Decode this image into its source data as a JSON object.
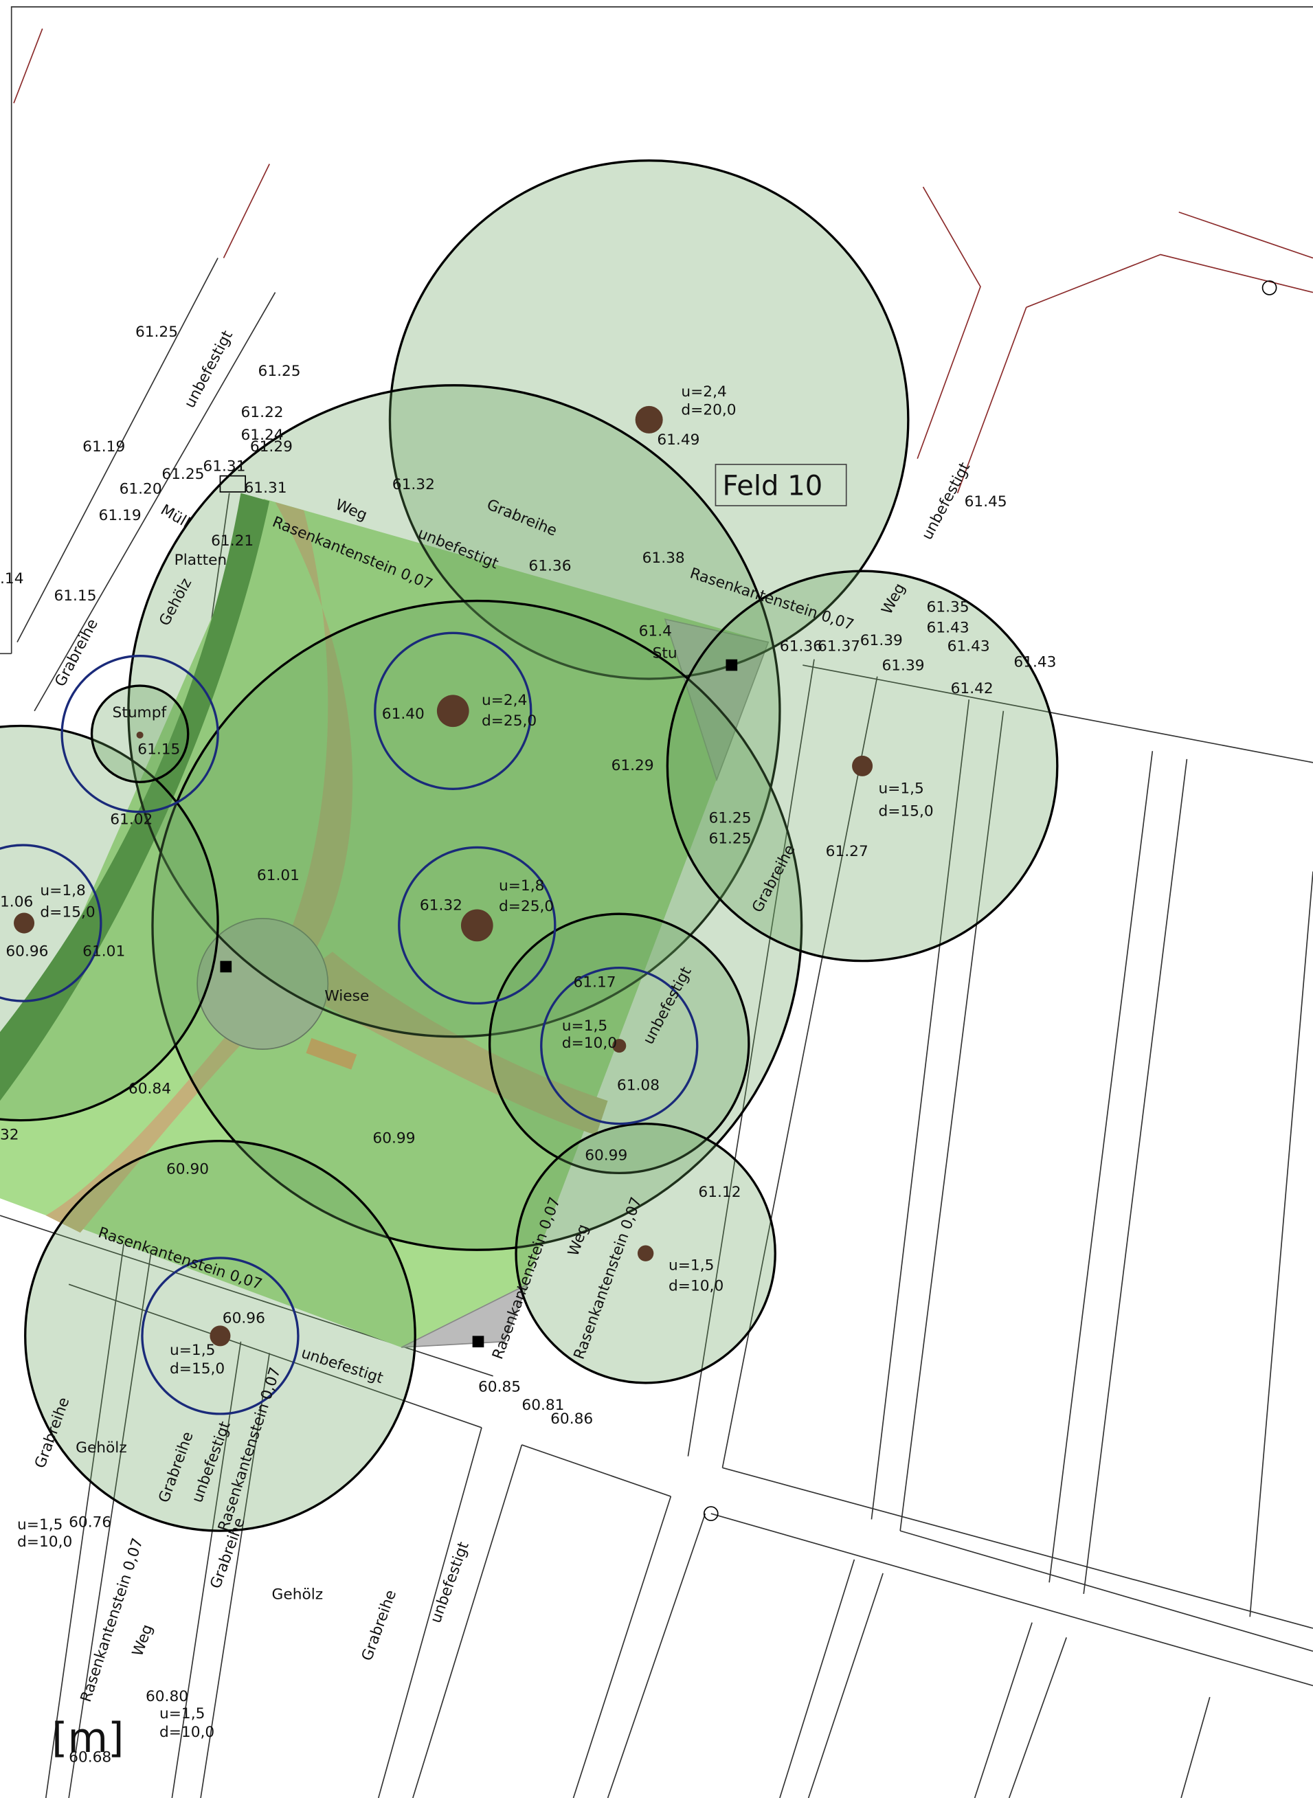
{
  "labels": [
    "61.25",
    "61.25",
    "unbefestigt",
    "61.22",
    "61.24",
    "61.29",
    "61.19",
    "61.25",
    "61.31",
    "61.31",
    "61.20",
    "Müll",
    "61.19",
    "61.21",
    "Platten",
    ".14",
    "61.15",
    "Gehölz",
    "Grabreihe",
    "Stumpf",
    "61.15",
    "61.02",
    "1.06",
    "u=1,8",
    "d=15,0",
    "60.96",
    "61.01",
    "61.01",
    "60.84",
    "32",
    "60.90",
    "Weg",
    "Grabreihe",
    "Rasenkantenstein 0,07",
    "unbefestigt",
    "61.32",
    "61.36",
    "61.38",
    "Rasenkantenstein 0,07",
    "Weg",
    "unbefestigt",
    "61.45",
    "61.35",
    "61.43",
    "61.43",
    "61.43",
    "61.39",
    "61.39",
    "61.36",
    "61.37",
    "61.42",
    "61.4",
    "Stu",
    "u=2,4",
    "d=20,0",
    "61.49",
    "Feld 10",
    "61.40",
    "u=2,4",
    "d=25,0",
    "61.29",
    "u=1,5",
    "d=15,0",
    "61.25",
    "61.25",
    "61.27",
    "Grabreihe",
    "u=1,8",
    "d=25,0",
    "61.32",
    "61.17",
    "unbefestigt",
    "u=1,5",
    "d=10,0",
    "61.08",
    "Wiese",
    "60.99",
    "60.99",
    "61.12",
    "Rasenkantenstein 0,07",
    "Rasenkantenstein 0,07",
    "Weg",
    "Rasenkantenstein 0,07",
    "u=1,5",
    "d=10,0",
    "60.96",
    "u=1,5",
    "d=15,0",
    "unbefestigt",
    "Rasenkantenstein 0,07",
    "60.85",
    "60.81",
    "60.86",
    "Gehölz",
    "Grabreihe",
    "Grabreihe",
    "unbefestigt",
    "Grabreihe",
    "u=1,5",
    "d=10,0",
    "60.76",
    "Gehölz",
    "Grabreihe",
    "unbefestigt",
    "Rasenkantenstein 0,07",
    "Weg",
    "60.80",
    "u=1,5",
    "d=10,0",
    "[m]",
    "60.68"
  ]
}
